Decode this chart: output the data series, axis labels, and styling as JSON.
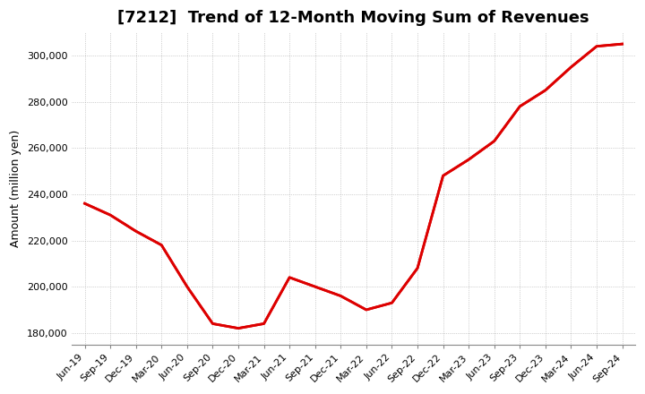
{
  "title": "[7212]  Trend of 12-Month Moving Sum of Revenues",
  "ylabel": "Amount (million yen)",
  "background_color": "#ffffff",
  "grid_color": "#aaaaaa",
  "line_color": "#dd0000",
  "x_labels": [
    "Jun-19",
    "Sep-19",
    "Dec-19",
    "Mar-20",
    "Jun-20",
    "Sep-20",
    "Dec-20",
    "Mar-21",
    "Jun-21",
    "Sep-21",
    "Dec-21",
    "Mar-22",
    "Jun-22",
    "Sep-22",
    "Dec-22",
    "Mar-23",
    "Jun-23",
    "Sep-23",
    "Dec-23",
    "Mar-24",
    "Jun-24",
    "Sep-24"
  ],
  "y_values": [
    236000,
    231000,
    224000,
    218000,
    200000,
    184000,
    182000,
    184000,
    204000,
    200000,
    196000,
    190000,
    193000,
    208000,
    248000,
    255000,
    263000,
    278000,
    285000,
    295000,
    304000,
    305000
  ],
  "ylim": [
    175000,
    310000
  ],
  "yticks": [
    180000,
    200000,
    220000,
    240000,
    260000,
    280000,
    300000
  ],
  "title_fontsize": 13,
  "label_fontsize": 9,
  "tick_fontsize": 8
}
